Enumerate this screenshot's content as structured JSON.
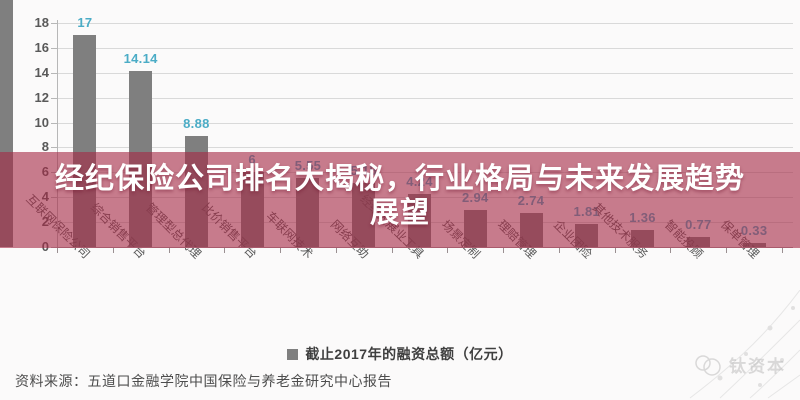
{
  "banner": {
    "line1": "经纪保险公司排名大揭秘，行业格局与未来发展趋势",
    "line2": "展望",
    "bg_color": "rgba(165,42,70,0.61)",
    "text_color": "#ffffff"
  },
  "chart_data": {
    "type": "bar",
    "categories": [
      "互联网保险公司",
      "综合销售平台",
      "管理型总代理",
      "比价销售平台",
      "车联网技术",
      "网络互助",
      "经纪人展业工具",
      "场景定制",
      "理赔管理",
      "企业团险",
      "其他技术服务",
      "智能投顾",
      "保单管理"
    ],
    "values": [
      17,
      14.14,
      8.88,
      6,
      5.55,
      5.15,
      4.24,
      2.94,
      2.74,
      1.81,
      1.36,
      0.77,
      0.33
    ],
    "value_labels": [
      "17",
      "14.14",
      "8.88",
      "6",
      "5.55",
      "5.15",
      "4.24",
      "2.94",
      "2.74",
      "1.81",
      "1.36",
      "0.77",
      "0.33"
    ],
    "title": "",
    "xlabel": "",
    "ylabel": "",
    "ylim": [
      0,
      18
    ],
    "yticks": [
      0,
      2,
      4,
      6,
      8,
      10,
      12,
      14,
      16,
      18
    ],
    "grid": true,
    "legend": "截止2017年的融资总额（亿元）",
    "legend_position": "bottom",
    "bar_color": "#7f7f7f",
    "value_label_color": "#4bacc6",
    "axis_label_color": "#595959",
    "gridline_color": "#d9d9d9"
  },
  "footer": {
    "source": "资料来源：五道口金融学院中国保险与养老金研究中心报告"
  },
  "watermark": {
    "text": "钛资本"
  }
}
